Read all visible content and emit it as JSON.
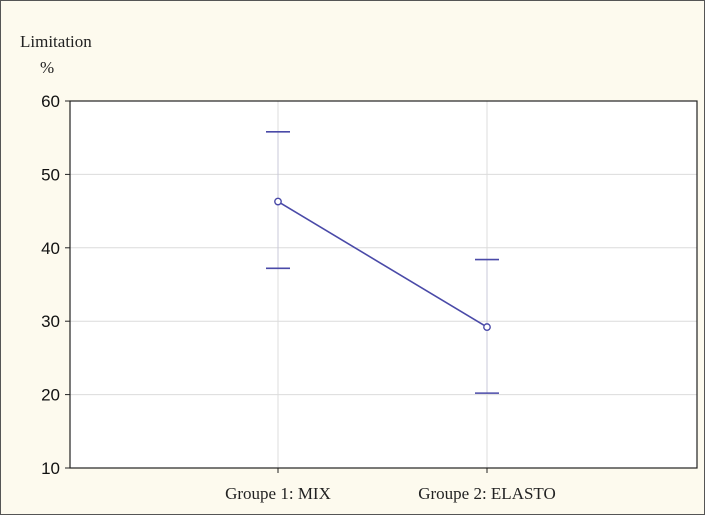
{
  "chart_data": {
    "type": "line",
    "ylabel": "Limitation",
    "yunit": "%",
    "categories": [
      "Groupe 1: MIX",
      "Groupe 2: ELASTO"
    ],
    "series": [
      {
        "values": [
          46.3,
          29.2
        ],
        "err_low": [
          37.2,
          20.2
        ],
        "err_high": [
          55.8,
          38.4
        ]
      }
    ],
    "ylim": [
      10,
      60
    ],
    "yticks": [
      10,
      20,
      30,
      40,
      50,
      60
    ],
    "grid": true,
    "colors": {
      "series": "#4a4aa8",
      "grid": "#dcdcdc",
      "axis": "#222222"
    }
  }
}
